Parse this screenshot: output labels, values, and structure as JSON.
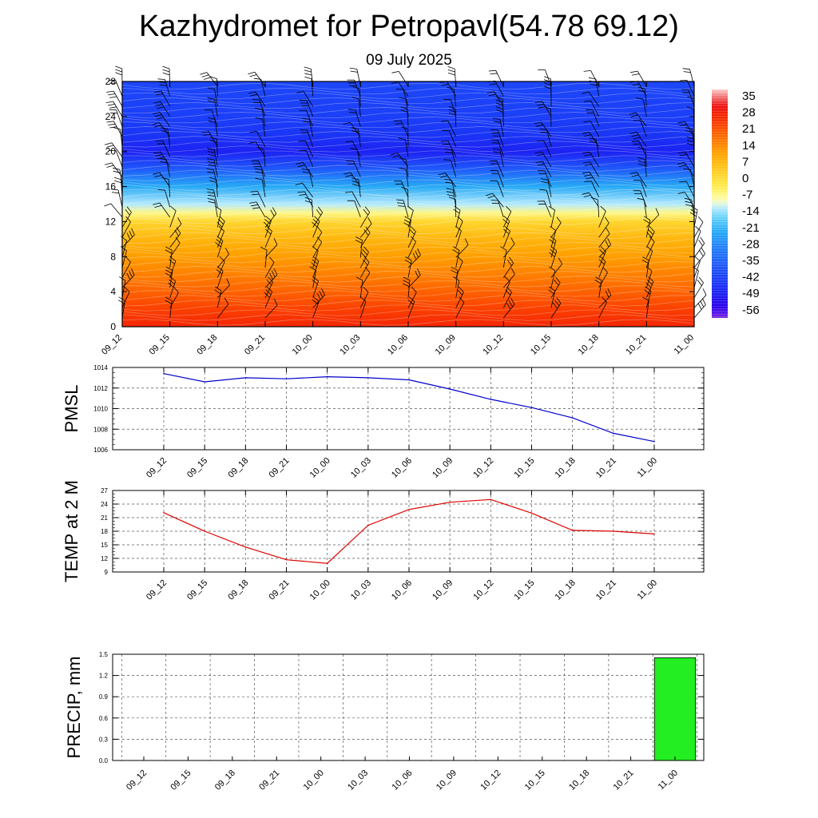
{
  "header": {
    "title": "Kazhydromet for Petropavl(54.78 69.12)",
    "subtitle": "09 July 2025"
  },
  "chart_data": [
    {
      "id": "cross-section",
      "type": "heatmap",
      "title": "",
      "xlabel": "",
      "ylabel": "",
      "x_tick_labels": [
        "09_12",
        "09_15",
        "09_18",
        "09_21",
        "10_00",
        "10_03",
        "10_06",
        "10_09",
        "10_12",
        "10_15",
        "10_18",
        "10_21",
        "11_00"
      ],
      "y_ticks": [
        0,
        4,
        8,
        12,
        16,
        20,
        24,
        28
      ],
      "ylim": [
        0,
        28
      ],
      "colorbar": {
        "labels": [
          "35",
          "28",
          "21",
          "14",
          "7",
          "0",
          "-7",
          "-14",
          "-21",
          "-28",
          "-35",
          "-42",
          "-49",
          "-56"
        ],
        "range": [
          -63,
          35
        ]
      },
      "temperature_profile": [
        {
          "level": 0,
          "value": 24
        },
        {
          "level": 2,
          "value": 20
        },
        {
          "level": 4,
          "value": 16
        },
        {
          "level": 6,
          "value": 12
        },
        {
          "level": 8,
          "value": 8
        },
        {
          "level": 10,
          "value": 4
        },
        {
          "level": 12,
          "value": -2
        },
        {
          "level": 13,
          "value": -10
        },
        {
          "level": 14,
          "value": -16
        },
        {
          "level": 16,
          "value": -26
        },
        {
          "level": 18,
          "value": -40
        },
        {
          "level": 20,
          "value": -52
        },
        {
          "level": 22,
          "value": -48
        },
        {
          "level": 24,
          "value": -46
        },
        {
          "level": 28,
          "value": -44
        }
      ],
      "wind_barbs": true
    },
    {
      "id": "pmsl",
      "type": "line",
      "ylabel": "PMSL",
      "ylim": [
        1006,
        1014
      ],
      "y_ticks": [
        1006,
        1008,
        1010,
        1012,
        1014
      ],
      "categories": [
        "09_12",
        "09_15",
        "09_18",
        "09_21",
        "10_00",
        "10_03",
        "10_06",
        "10_09",
        "10_12",
        "10_15",
        "10_18",
        "10_21",
        "11_00"
      ],
      "values": [
        1013.4,
        1012.6,
        1013.0,
        1012.9,
        1013.1,
        1013.0,
        1012.8,
        1011.9,
        1010.9,
        1010.1,
        1009.1,
        1007.6,
        1006.8
      ],
      "color": "#0000cc"
    },
    {
      "id": "temp2m",
      "type": "line",
      "ylabel": "TEMP at 2 M",
      "ylim": [
        9,
        27
      ],
      "y_ticks": [
        9,
        12,
        15,
        18,
        21,
        24,
        27
      ],
      "categories": [
        "09_12",
        "09_15",
        "09_18",
        "09_21",
        "10_00",
        "10_03",
        "10_06",
        "10_09",
        "10_12",
        "10_15",
        "10_18",
        "10_21",
        "11_00"
      ],
      "values": [
        22.1,
        18.0,
        14.5,
        11.7,
        10.9,
        19.3,
        22.8,
        24.4,
        25.0,
        22.0,
        18.2,
        18.0,
        17.4
      ],
      "color": "#dd0000"
    },
    {
      "id": "precip",
      "type": "bar",
      "ylabel": "PRECIP, mm",
      "ylim": [
        0,
        1.5
      ],
      "y_tick_labels": [
        "0.0",
        "0.3",
        "0.6",
        "0.9",
        "1.2",
        "1.5"
      ],
      "y_ticks": [
        0,
        0.3,
        0.6,
        0.9,
        1.2,
        1.5
      ],
      "categories": [
        "09_12",
        "09_15",
        "09_18",
        "09_21",
        "10_00",
        "10_03",
        "10_06",
        "10_09",
        "10_12",
        "10_15",
        "10_18",
        "10_21",
        "11_00"
      ],
      "values": [
        0,
        0,
        0,
        0,
        0,
        0,
        0,
        0,
        0,
        0,
        0,
        0,
        1.45
      ],
      "color": "#22ee22"
    }
  ]
}
